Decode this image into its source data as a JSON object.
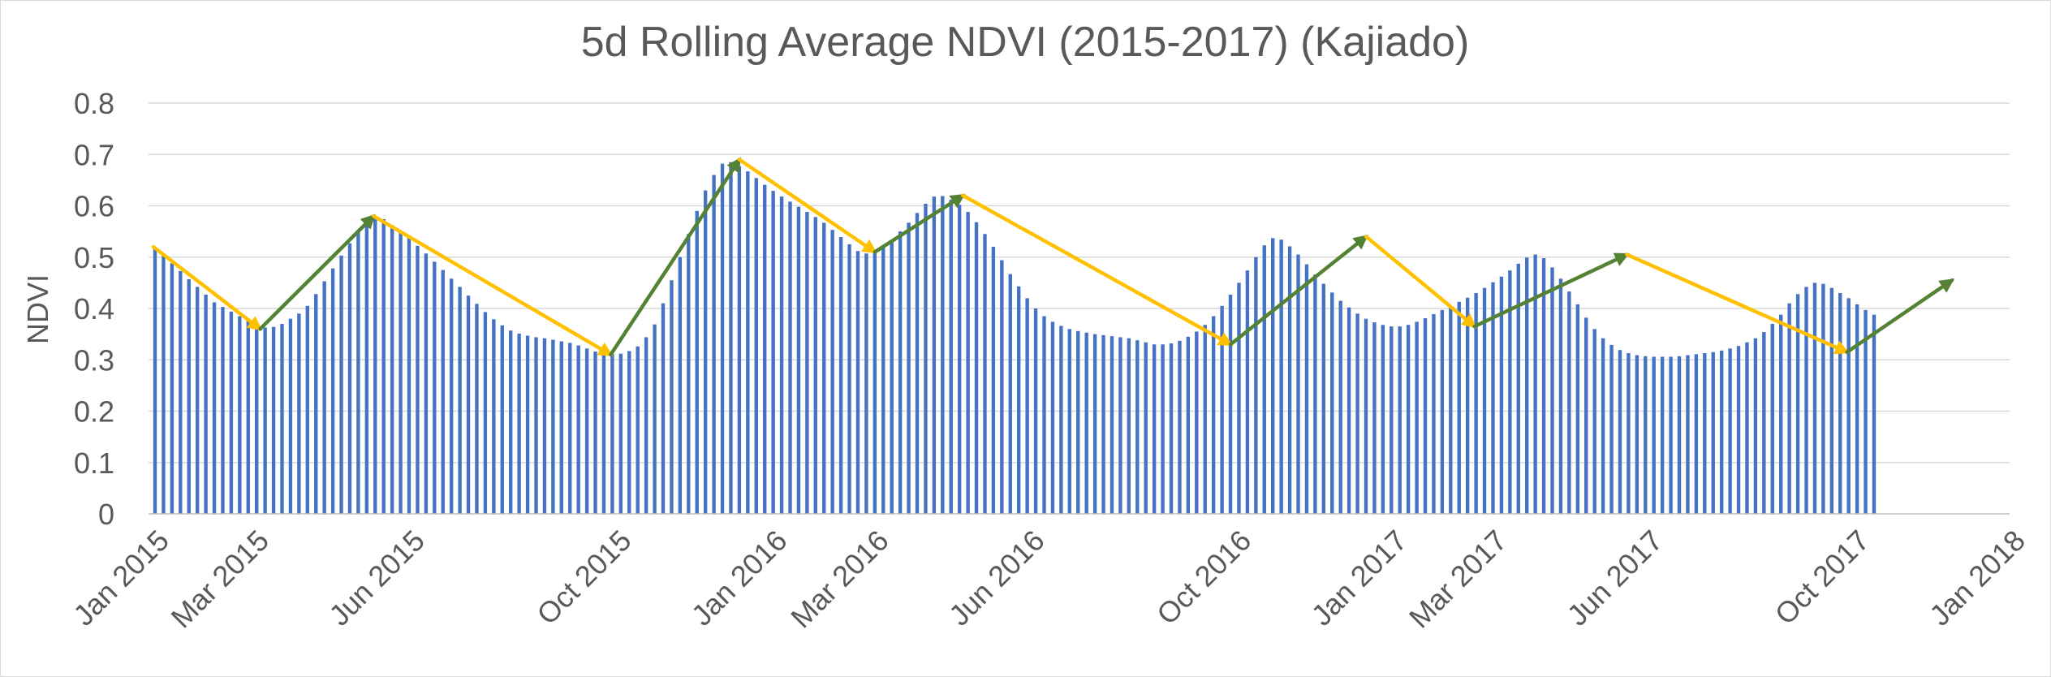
{
  "chart_data": {
    "type": "bar",
    "title": "5d Rolling Average NDVI (2015-2017) (Kajiado)",
    "xlabel": "",
    "ylabel": "NDVI",
    "ylim": [
      0,
      0.8
    ],
    "yticks": [
      "0",
      "0.1",
      "0.2",
      "0.3",
      "0.4",
      "0.5",
      "0.6",
      "0.7",
      "0.8"
    ],
    "grid": true,
    "legend": "none",
    "x_tick_labels": [
      {
        "label": "Jan 2015",
        "day": 0
      },
      {
        "label": "Mar 2015",
        "day": 59
      },
      {
        "label": "Jun 2015",
        "day": 151
      },
      {
        "label": "Oct 2015",
        "day": 273
      },
      {
        "label": "Jan 2016",
        "day": 365
      },
      {
        "label": "Mar 2016",
        "day": 425
      },
      {
        "label": "Jun 2016",
        "day": 517
      },
      {
        "label": "Oct 2016",
        "day": 639
      },
      {
        "label": "Jan 2017",
        "day": 731
      },
      {
        "label": "Mar 2017",
        "day": 790
      },
      {
        "label": "Jun 2017",
        "day": 882
      },
      {
        "label": "Oct 2017",
        "day": 1004
      },
      {
        "label": "Jan 2018",
        "day": 1096
      }
    ],
    "bar_interval_days": 5,
    "values": [
      0.518,
      0.503,
      0.488,
      0.473,
      0.457,
      0.442,
      0.427,
      0.412,
      0.403,
      0.394,
      0.385,
      0.376,
      0.367,
      0.363,
      0.364,
      0.37,
      0.38,
      0.39,
      0.405,
      0.428,
      0.453,
      0.478,
      0.503,
      0.527,
      0.551,
      0.571,
      0.578,
      0.574,
      0.562,
      0.55,
      0.537,
      0.522,
      0.507,
      0.491,
      0.475,
      0.458,
      0.442,
      0.425,
      0.409,
      0.393,
      0.379,
      0.367,
      0.357,
      0.351,
      0.347,
      0.344,
      0.342,
      0.339,
      0.336,
      0.333,
      0.328,
      0.322,
      0.316,
      0.312,
      0.311,
      0.312,
      0.317,
      0.326,
      0.344,
      0.369,
      0.41,
      0.455,
      0.5,
      0.545,
      0.59,
      0.63,
      0.66,
      0.682,
      0.685,
      0.677,
      0.667,
      0.654,
      0.641,
      0.629,
      0.618,
      0.608,
      0.598,
      0.588,
      0.578,
      0.567,
      0.553,
      0.539,
      0.525,
      0.512,
      0.507,
      0.51,
      0.52,
      0.533,
      0.55,
      0.567,
      0.586,
      0.604,
      0.618,
      0.619,
      0.612,
      0.602,
      0.588,
      0.568,
      0.545,
      0.52,
      0.494,
      0.467,
      0.443,
      0.42,
      0.4,
      0.385,
      0.374,
      0.366,
      0.36,
      0.356,
      0.353,
      0.35,
      0.348,
      0.346,
      0.344,
      0.342,
      0.338,
      0.334,
      0.33,
      0.33,
      0.332,
      0.337,
      0.345,
      0.355,
      0.368,
      0.385,
      0.405,
      0.427,
      0.45,
      0.474,
      0.5,
      0.523,
      0.537,
      0.534,
      0.521,
      0.505,
      0.486,
      0.466,
      0.448,
      0.431,
      0.415,
      0.402,
      0.39,
      0.38,
      0.373,
      0.368,
      0.365,
      0.365,
      0.368,
      0.374,
      0.381,
      0.389,
      0.397,
      0.405,
      0.413,
      0.421,
      0.43,
      0.44,
      0.451,
      0.462,
      0.474,
      0.487,
      0.499,
      0.505,
      0.498,
      0.48,
      0.458,
      0.433,
      0.408,
      0.382,
      0.36,
      0.342,
      0.329,
      0.319,
      0.313,
      0.309,
      0.307,
      0.306,
      0.306,
      0.306,
      0.307,
      0.309,
      0.311,
      0.313,
      0.315,
      0.318,
      0.322,
      0.327,
      0.334,
      0.342,
      0.354,
      0.37,
      0.388,
      0.41,
      0.428,
      0.442,
      0.45,
      0.448,
      0.44,
      0.43,
      0.42,
      0.408,
      0.397,
      0.388
    ],
    "trend_segments": [
      {
        "color": "#ffc000",
        "from": [
          0,
          0.52
        ],
        "to": [
          63,
          0.36
        ]
      },
      {
        "color": "#548235",
        "from": [
          63,
          0.36
        ],
        "to": [
          130,
          0.58
        ]
      },
      {
        "color": "#ffc000",
        "from": [
          130,
          0.58
        ],
        "to": [
          270,
          0.31
        ]
      },
      {
        "color": "#548235",
        "from": [
          270,
          0.31
        ],
        "to": [
          346,
          0.69
        ]
      },
      {
        "color": "#ffc000",
        "from": [
          346,
          0.69
        ],
        "to": [
          426,
          0.51
        ]
      },
      {
        "color": "#548235",
        "from": [
          426,
          0.51
        ],
        "to": [
          478,
          0.62
        ]
      },
      {
        "color": "#ffc000",
        "from": [
          478,
          0.62
        ],
        "to": [
          636,
          0.33
        ]
      },
      {
        "color": "#548235",
        "from": [
          636,
          0.33
        ],
        "to": [
          716,
          0.54
        ]
      },
      {
        "color": "#ffc000",
        "from": [
          716,
          0.54
        ],
        "to": [
          780,
          0.365
        ]
      },
      {
        "color": "#548235",
        "from": [
          780,
          0.365
        ],
        "to": [
          870,
          0.505
        ]
      },
      {
        "color": "#ffc000",
        "from": [
          870,
          0.505
        ],
        "to": [
          1000,
          0.315
        ]
      },
      {
        "color": "#548235",
        "from": [
          1000,
          0.315
        ],
        "to": [
          1062,
          0.455
        ]
      }
    ],
    "colors": {
      "bars": "#4472c4",
      "rising": "#548235",
      "falling": "#ffc000"
    }
  }
}
